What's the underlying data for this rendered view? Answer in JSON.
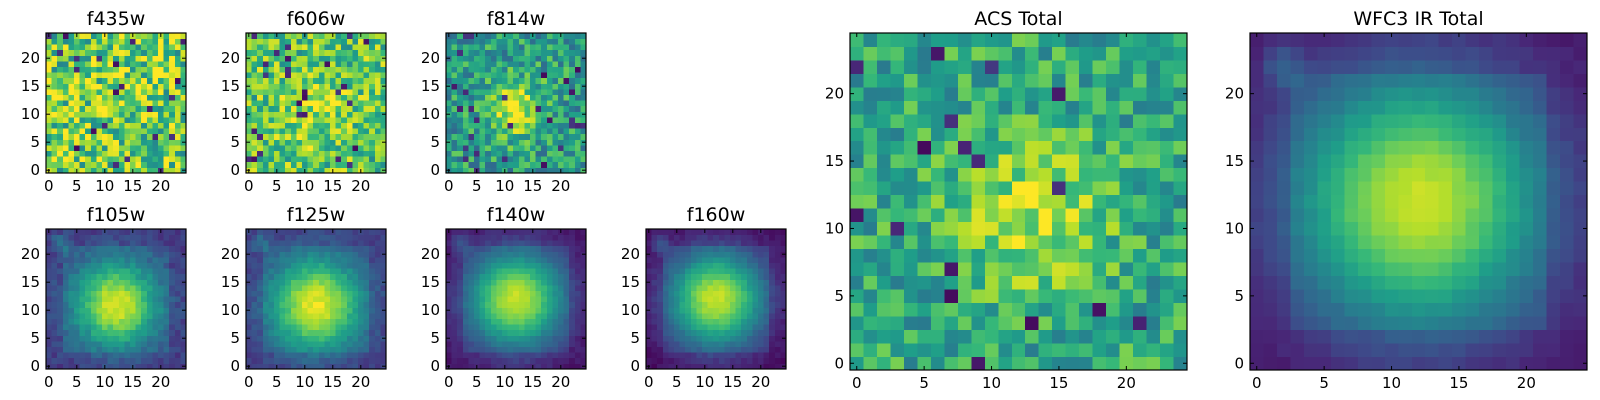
{
  "colormap": "viridis",
  "chart_data": [
    {
      "id": "f435w",
      "type": "heatmap",
      "title": "f435w",
      "image": {
        "size": 25,
        "pattern": "noise",
        "center": [
          12,
          12
        ],
        "sigma": 6,
        "peak": 0.05,
        "noise": 0.3,
        "base": 0.75
      },
      "xticks": [
        0,
        5,
        10,
        15,
        20
      ],
      "yticks": [
        0,
        5,
        10,
        15,
        20
      ],
      "xlim": [
        0,
        24
      ],
      "ylim": [
        0,
        24
      ],
      "grid": false
    },
    {
      "id": "f606w",
      "type": "heatmap",
      "title": "f606w",
      "image": {
        "size": 25,
        "pattern": "faint-source",
        "center": [
          11,
          11
        ],
        "sigma": 4,
        "peak": 0.18,
        "noise": 0.25,
        "base": 0.72
      },
      "xticks": [
        0,
        5,
        10,
        15,
        20
      ],
      "yticks": [
        0,
        5,
        10,
        15,
        20
      ],
      "xlim": [
        0,
        24
      ],
      "ylim": [
        0,
        24
      ],
      "grid": false
    },
    {
      "id": "f814w",
      "type": "heatmap",
      "title": "f814w",
      "image": {
        "size": 25,
        "pattern": "faint-source",
        "center": [
          12,
          11
        ],
        "sigma": 3.5,
        "peak": 0.4,
        "noise": 0.22,
        "base": 0.55
      },
      "xticks": [
        0,
        5,
        10,
        15,
        20
      ],
      "yticks": [
        0,
        5,
        10,
        15,
        20
      ],
      "xlim": [
        0,
        24
      ],
      "ylim": [
        0,
        24
      ],
      "grid": false
    },
    {
      "id": "f105w",
      "type": "heatmap",
      "title": "f105w",
      "image": {
        "size": 25,
        "pattern": "source",
        "center": [
          12,
          11
        ],
        "sigma": 3.5,
        "peak": 0.7,
        "noise": 0.06,
        "base": 0.25,
        "knot": [
          2,
          22
        ]
      },
      "xticks": [
        0,
        5,
        10,
        15,
        20
      ],
      "yticks": [
        0,
        5,
        10,
        15,
        20
      ],
      "xlim": [
        0,
        24
      ],
      "ylim": [
        0,
        24
      ],
      "grid": false
    },
    {
      "id": "f125w",
      "type": "heatmap",
      "title": "f125w",
      "image": {
        "size": 25,
        "pattern": "source",
        "center": [
          12,
          11
        ],
        "sigma": 3.8,
        "peak": 0.72,
        "noise": 0.05,
        "base": 0.25,
        "knot": [
          2,
          22
        ]
      },
      "xticks": [
        0,
        5,
        10,
        15,
        20
      ],
      "yticks": [
        0,
        5,
        10,
        15,
        20
      ],
      "xlim": [
        0,
        24
      ],
      "ylim": [
        0,
        24
      ],
      "grid": false
    },
    {
      "id": "f140w",
      "type": "heatmap",
      "title": "f140w",
      "image": {
        "size": 25,
        "pattern": "source",
        "center": [
          12,
          12
        ],
        "sigma": 4,
        "peak": 0.8,
        "noise": 0.03,
        "base": 0.12,
        "knot": [
          2,
          22
        ]
      },
      "xticks": [
        0,
        5,
        10,
        15,
        20
      ],
      "yticks": [
        0,
        5,
        10,
        15,
        20
      ],
      "xlim": [
        0,
        24
      ],
      "ylim": [
        0,
        24
      ],
      "grid": false
    },
    {
      "id": "f160w",
      "type": "heatmap",
      "title": "f160w",
      "image": {
        "size": 25,
        "pattern": "source",
        "center": [
          12,
          12
        ],
        "sigma": 4,
        "peak": 0.82,
        "noise": 0.03,
        "base": 0.1,
        "knot": [
          2,
          22
        ]
      },
      "xticks": [
        0,
        5,
        10,
        15,
        20
      ],
      "yticks": [
        0,
        5,
        10,
        15,
        20
      ],
      "xlim": [
        0,
        24
      ],
      "ylim": [
        0,
        24
      ],
      "grid": false
    },
    {
      "id": "acs-total",
      "type": "heatmap",
      "title": "ACS Total",
      "image": {
        "size": 25,
        "pattern": "faint-source",
        "center": [
          13,
          11
        ],
        "sigma": 4,
        "peak": 0.3,
        "noise": 0.2,
        "base": 0.6
      },
      "xticks": [
        0,
        5,
        10,
        15,
        20
      ],
      "yticks": [
        0,
        5,
        10,
        15,
        20
      ],
      "xlim": [
        0,
        24
      ],
      "ylim": [
        0,
        24
      ],
      "grid": false
    },
    {
      "id": "wfc3-ir-total",
      "type": "heatmap",
      "title": "WFC3 IR Total",
      "image": {
        "size": 25,
        "pattern": "source",
        "center": [
          12,
          12
        ],
        "sigma": 4.5,
        "peak": 0.8,
        "noise": 0.02,
        "base": 0.12,
        "knot": [
          2,
          22
        ]
      },
      "xticks": [
        0,
        5,
        10,
        15,
        20
      ],
      "yticks": [
        0,
        5,
        10,
        15,
        20
      ],
      "xlim": [
        0,
        24
      ],
      "ylim": [
        0,
        24
      ],
      "grid": false
    }
  ]
}
